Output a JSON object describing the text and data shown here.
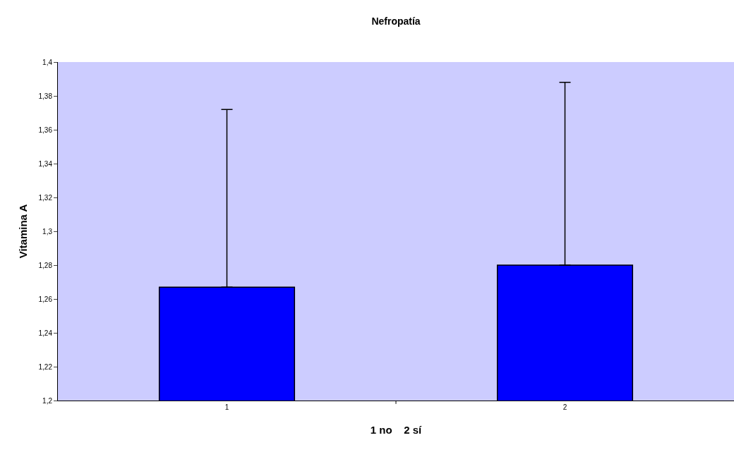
{
  "chart_data": {
    "type": "bar",
    "title": "Nefropatía",
    "xlabel": "1 no    2 sí",
    "ylabel": "Vitamina A",
    "categories": [
      "1",
      "2"
    ],
    "values": [
      1.267,
      1.28
    ],
    "errors": [
      [
        1.267,
        1.372
      ],
      [
        1.28,
        1.388
      ]
    ],
    "color": "#0000ff",
    "ylim": [
      1.2,
      1.4
    ],
    "yticks": [
      {
        "value": 1.2,
        "label": "1,2"
      },
      {
        "value": 1.22,
        "label": "1,22"
      },
      {
        "value": 1.24,
        "label": "1,24"
      },
      {
        "value": 1.26,
        "label": "1,26"
      },
      {
        "value": 1.28,
        "label": "1,28"
      },
      {
        "value": 1.3,
        "label": "1,3"
      },
      {
        "value": 1.32,
        "label": "1,32"
      },
      {
        "value": 1.34,
        "label": "1,34"
      },
      {
        "value": 1.36,
        "label": "1,36"
      },
      {
        "value": 1.38,
        "label": "1,38"
      },
      {
        "value": 1.4,
        "label": "1,4"
      }
    ],
    "grid": false
  }
}
